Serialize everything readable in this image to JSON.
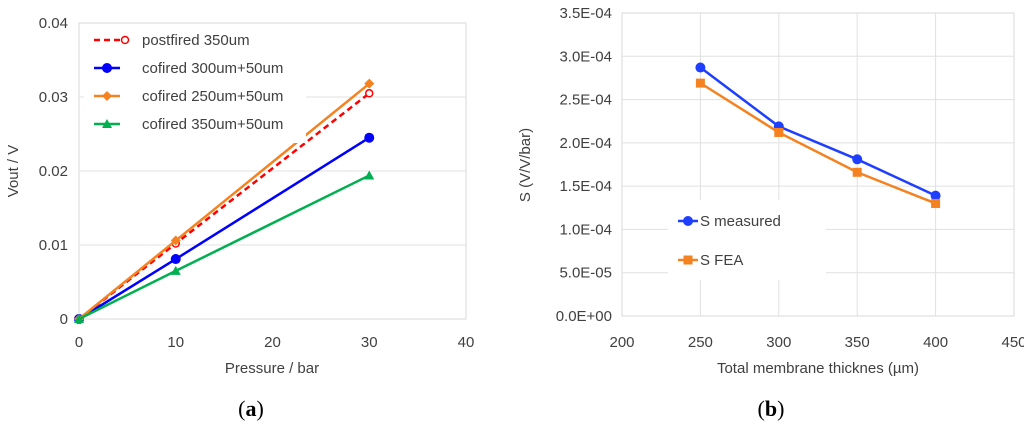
{
  "chart_data": [
    {
      "type": "line",
      "caption_open": "(",
      "caption_letter": "a",
      "caption_close": ")",
      "xlabel": "Pressure / bar",
      "ylabel": "Vout / V",
      "xlim": [
        0,
        40
      ],
      "ylim": [
        0,
        0.04
      ],
      "xticks": [
        "0",
        "10",
        "20",
        "30",
        "40"
      ],
      "yticks": [
        "0",
        "0.01",
        "0.02",
        "0.03",
        "0.04"
      ],
      "x": [
        0,
        10,
        30
      ],
      "series": [
        {
          "name": "postfired 350um",
          "values": [
            0,
            0.0102,
            0.0305
          ],
          "color": "#ff0000",
          "dashed": true,
          "marker": "open-circle"
        },
        {
          "name": "cofired 300um+50um",
          "values": [
            0,
            0.0081,
            0.0245
          ],
          "color": "#0000ff",
          "dashed": false,
          "marker": "circle"
        },
        {
          "name": "cofired 250um+50um",
          "values": [
            0,
            0.0106,
            0.0318
          ],
          "color": "#f58220",
          "dashed": false,
          "marker": "diamond"
        },
        {
          "name": "cofired 350um+50um",
          "values": [
            0,
            0.0065,
            0.0194
          ],
          "color": "#00b050",
          "dashed": false,
          "marker": "triangle"
        }
      ]
    },
    {
      "type": "line",
      "caption_open": "(",
      "caption_letter": "b",
      "caption_close": ")",
      "xlabel": "Total membrane thicknes (µm)",
      "ylabel": "S  (V/V/bar)",
      "xlim": [
        200,
        450
      ],
      "ylim": [
        0,
        0.00035
      ],
      "xticks": [
        "200",
        "250",
        "300",
        "350",
        "400",
        "450"
      ],
      "yticks": [
        "0.0E+00",
        "5.0E-05",
        "1.0E-04",
        "1.5E-04",
        "2.0E-04",
        "2.5E-04",
        "3.0E-04",
        "3.5E-04"
      ],
      "x": [
        250,
        300,
        350,
        400
      ],
      "series": [
        {
          "name": "S measured",
          "values": [
            0.000287,
            0.000219,
            0.000181,
            0.000139
          ],
          "color": "#1f3fff",
          "dashed": false,
          "marker": "circle"
        },
        {
          "name": "S FEA",
          "values": [
            0.000269,
            0.000212,
            0.000166,
            0.00013
          ],
          "color": "#f58220",
          "dashed": false,
          "marker": "square"
        }
      ]
    }
  ]
}
